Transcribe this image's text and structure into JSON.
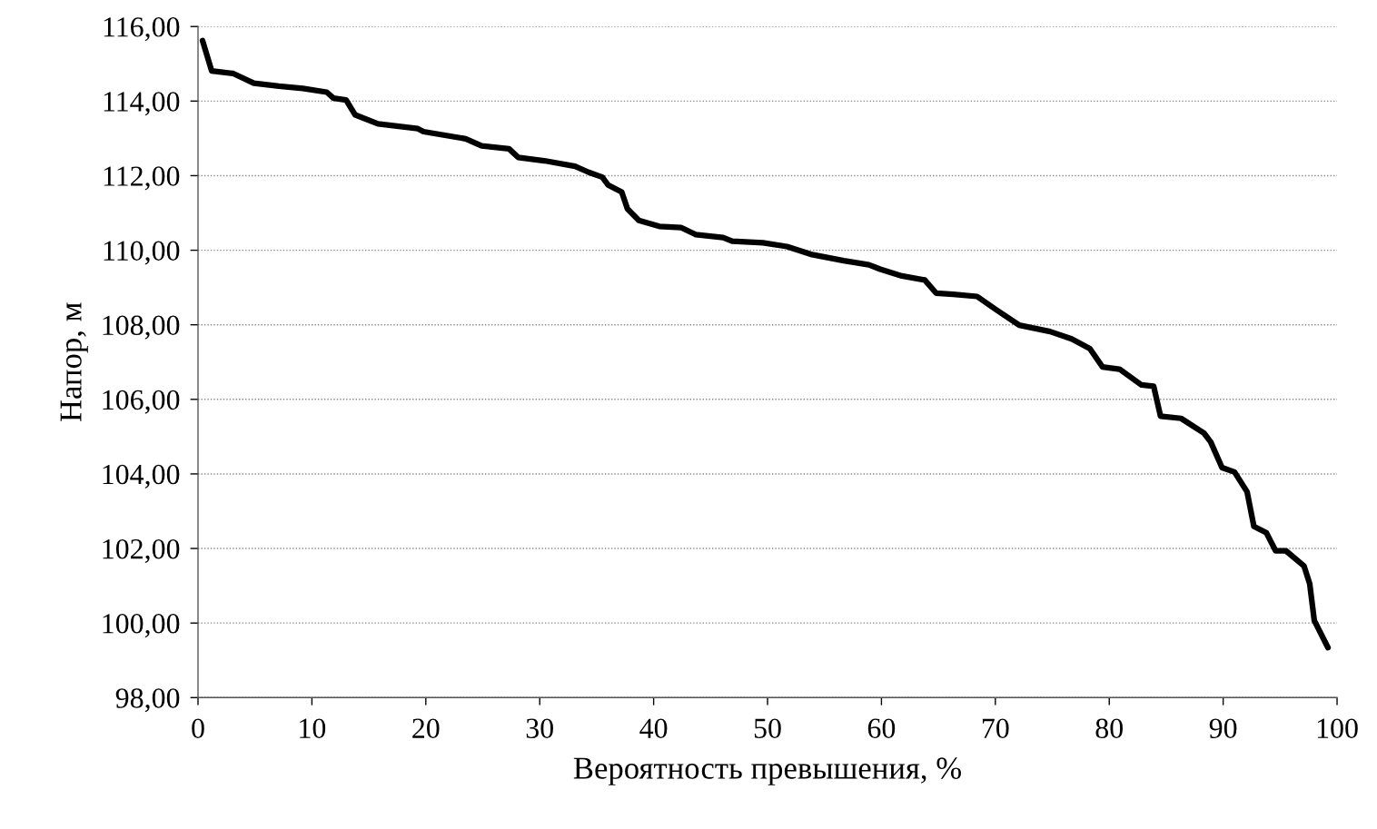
{
  "chart_data": {
    "type": "line",
    "xlabel": "Вероятность превышения, %",
    "ylabel": "Напор, м",
    "x": [
      0.4,
      1.2,
      3.1,
      4.9,
      7.1,
      9.2,
      11.3,
      11.9,
      13.0,
      13.8,
      15.8,
      19.3,
      19.8,
      23.5,
      24.9,
      27.3,
      28.1,
      30.4,
      33.1,
      34.3,
      35.5,
      36.0,
      37.2,
      37.7,
      38.7,
      40.5,
      42.4,
      43.7,
      46.1,
      46.9,
      49.6,
      51.7,
      53.8,
      56.7,
      58.9,
      59.9,
      61.8,
      63.8,
      64.8,
      66.3,
      68.4,
      70.0,
      72.1,
      74.8,
      76.7,
      78.3,
      79.4,
      80.9,
      82.8,
      83.9,
      84.5,
      86.3,
      88.3,
      88.9,
      89.9,
      91.0,
      92.1,
      92.7,
      93.8,
      94.6,
      95.5,
      97.1,
      97.6,
      98.0,
      99.2
    ],
    "series": [
      {
        "color": "#000000",
        "values": [
          115.62,
          114.81,
          114.74,
          114.48,
          114.4,
          114.34,
          114.24,
          114.08,
          114.03,
          113.63,
          113.39,
          113.26,
          113.18,
          112.99,
          112.8,
          112.72,
          112.49,
          112.4,
          112.25,
          112.09,
          111.96,
          111.75,
          111.56,
          111.11,
          110.8,
          110.64,
          110.61,
          110.42,
          110.34,
          110.24,
          110.2,
          110.1,
          109.89,
          109.72,
          109.61,
          109.49,
          109.31,
          109.2,
          108.85,
          108.82,
          108.76,
          108.42,
          107.99,
          107.82,
          107.62,
          107.36,
          106.87,
          106.81,
          106.39,
          106.35,
          105.55,
          105.49,
          105.1,
          104.86,
          104.17,
          104.05,
          103.52,
          102.59,
          102.42,
          101.94,
          101.94,
          101.53,
          101.05,
          100.07,
          99.34
        ]
      }
    ],
    "xlim": [
      0,
      100
    ],
    "ylim": [
      98,
      116
    ],
    "xticks": [
      0,
      10,
      20,
      30,
      40,
      50,
      60,
      70,
      80,
      90,
      100
    ],
    "yticks": [
      {
        "value": 98,
        "label": "98,00"
      },
      {
        "value": 100,
        "label": "100,00"
      },
      {
        "value": 102,
        "label": "102,00"
      },
      {
        "value": 104,
        "label": "104,00"
      },
      {
        "value": 106,
        "label": "106,00"
      },
      {
        "value": 108,
        "label": "108,00"
      },
      {
        "value": 110,
        "label": "110,00"
      },
      {
        "value": 112,
        "label": "112,00"
      },
      {
        "value": 114,
        "label": "114,00"
      },
      {
        "value": 116,
        "label": "116,00"
      }
    ],
    "grid": "y",
    "line_style": "solid"
  }
}
